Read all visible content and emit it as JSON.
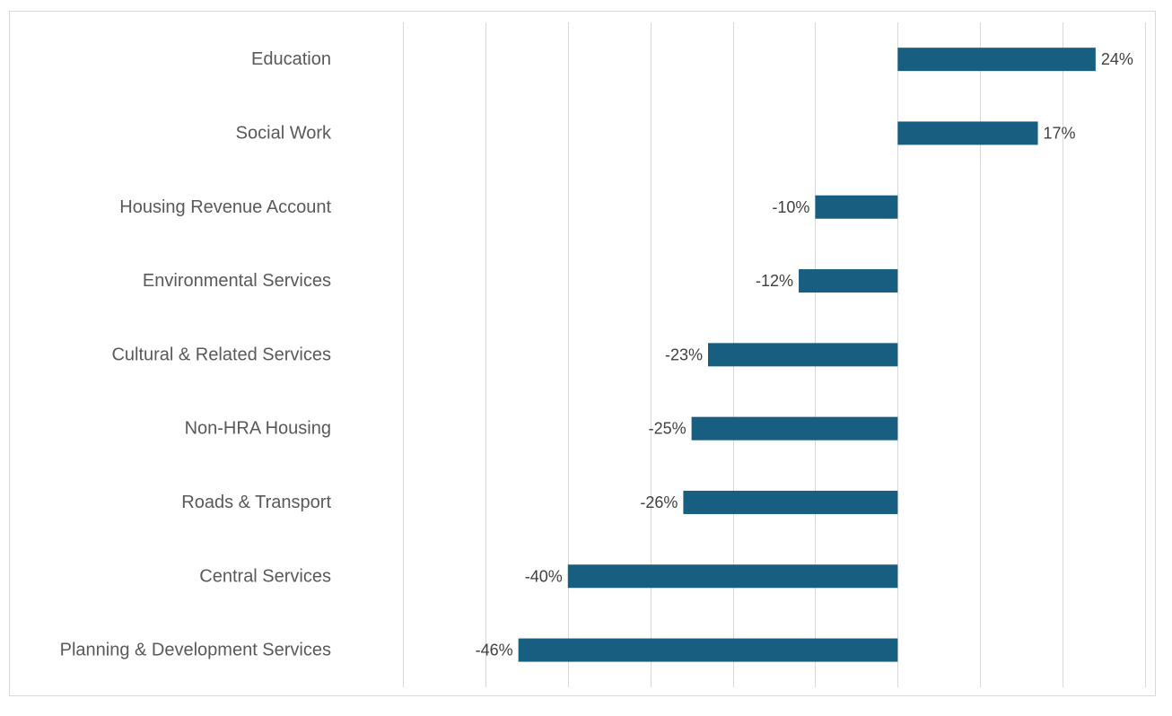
{
  "chart_data": {
    "type": "bar",
    "orientation": "horizontal",
    "categories": [
      "Education",
      "Social Work",
      "Housing Revenue Account",
      "Environmental Services",
      "Cultural & Related Services",
      "Non-HRA Housing",
      "Roads & Transport ",
      "Central Services",
      "Planning & Development Services"
    ],
    "values": [
      24,
      17,
      -10,
      -12,
      -23,
      -25,
      -26,
      -40,
      -46
    ],
    "value_labels": [
      "24%",
      "17%",
      "-10%",
      "-12%",
      "-23%",
      "-25%",
      "-26%",
      "-40%",
      "-46%"
    ],
    "unit": "%",
    "xlim": [
      -60,
      30
    ],
    "grid_step": 10,
    "grid": true,
    "legend": "none",
    "bar_color": "#175e80",
    "title": "",
    "xlabel": "",
    "ylabel": ""
  }
}
